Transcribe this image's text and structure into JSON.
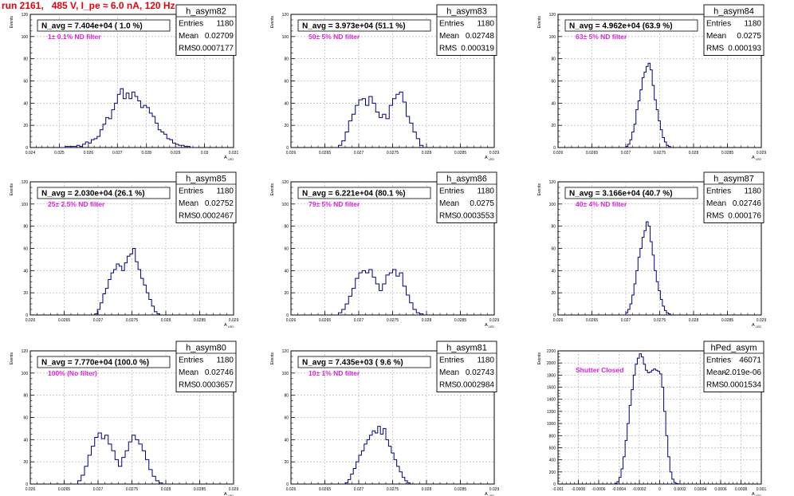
{
  "page": {
    "title": "run 2161,   485 V, I_pe ≈ 6.0 nA, 120 Hz",
    "colors": {
      "title": "#e8000a",
      "hist": "#000080",
      "annotation": "#e020e0",
      "grid": "#aaaaaa"
    }
  },
  "chart_data": [
    {
      "type": "histogram",
      "hist_name": "h_asym82",
      "n_avg": "N_avg = 7.404e+04 ( 1.0 %)",
      "annotation": "1± 0.1% ND filter",
      "stats": [
        {
          "label": "Entries",
          "value": "1180"
        },
        {
          "label": "Mean",
          "value": "0.02709"
        },
        {
          "label": "RMS",
          "value": "0.0007177"
        }
      ],
      "ylabel": "Events",
      "xlabel": "A",
      "xlabel_sub": "LED",
      "xlim": [
        0.024,
        0.031
      ],
      "ylim": [
        0,
        120
      ],
      "xticks": [
        0.024,
        0.025,
        0.026,
        0.027,
        0.028,
        0.029,
        0.03,
        0.031
      ],
      "xtick_labels": [
        "0.024",
        "0.025",
        "0.026",
        "0.027",
        "0.028",
        "0.029",
        "0.03",
        "0.031"
      ],
      "yticks": [
        0,
        20,
        40,
        60,
        80,
        100,
        120
      ],
      "ytick_labels": [
        "0",
        "20",
        "40",
        "60",
        "80",
        "100",
        "120"
      ],
      "bins": {
        "start": 0.025,
        "width": 0.0001,
        "counts": [
          0,
          0,
          1,
          1,
          1,
          1,
          2,
          1,
          3,
          5,
          4,
          7,
          8,
          10,
          16,
          21,
          27,
          26,
          34,
          40,
          48,
          53,
          44,
          49,
          44,
          50,
          46,
          42,
          36,
          38,
          36,
          31,
          28,
          22,
          16,
          14,
          12,
          8,
          7,
          4,
          3,
          2,
          2,
          1,
          1,
          0,
          0
        ]
      }
    },
    {
      "type": "histogram",
      "hist_name": "h_asym83",
      "n_avg": "N_avg = 3.973e+04 (51.1 %)",
      "annotation": "50± 5% ND filter",
      "stats": [
        {
          "label": "Entries",
          "value": "1180"
        },
        {
          "label": "Mean",
          "value": "0.02748"
        },
        {
          "label": "RMS",
          "value": "0.000319"
        }
      ],
      "ylabel": "Events",
      "xlabel": "A",
      "xlabel_sub": "LED",
      "xlim": [
        0.026,
        0.029
      ],
      "ylim": [
        0,
        120
      ],
      "xticks": [
        0.026,
        0.0265,
        0.027,
        0.0275,
        0.028,
        0.0285,
        0.029
      ],
      "xtick_labels": [
        "0.026",
        "0.0265",
        "0.027",
        "0.0275",
        "0.028",
        "0.0285",
        "0.029"
      ],
      "yticks": [
        0,
        20,
        40,
        60,
        80,
        100,
        120
      ],
      "ytick_labels": [
        "0",
        "20",
        "40",
        "60",
        "80",
        "100",
        "120"
      ],
      "bins": {
        "start": 0.0267,
        "width": 5e-05,
        "counts": [
          2,
          6,
          14,
          24,
          30,
          38,
          43,
          44,
          38,
          46,
          40,
          32,
          27,
          30,
          26,
          38,
          44,
          48,
          50,
          41,
          28,
          22,
          14,
          8,
          2
        ]
      }
    },
    {
      "type": "histogram",
      "hist_name": "h_asym84",
      "n_avg": "N_avg = 4.962e+04 (63.9 %)",
      "annotation": "63± 5% ND filter",
      "stats": [
        {
          "label": "Entries",
          "value": "1180"
        },
        {
          "label": "Mean",
          "value": "0.0275"
        },
        {
          "label": "RMS",
          "value": "0.000193"
        }
      ],
      "ylabel": "Events",
      "xlabel": "A",
      "xlabel_sub": "LED",
      "xlim": [
        0.026,
        0.029
      ],
      "ylim": [
        0,
        120
      ],
      "xticks": [
        0.026,
        0.0265,
        0.027,
        0.0275,
        0.028,
        0.0285,
        0.029
      ],
      "xtick_labels": [
        "0.026",
        "0.0265",
        "0.027",
        "0.0275",
        "0.028",
        "0.0285",
        "0.029"
      ],
      "yticks": [
        0,
        20,
        40,
        60,
        80,
        100,
        120
      ],
      "ytick_labels": [
        "0",
        "20",
        "40",
        "60",
        "80",
        "100",
        "120"
      ],
      "bins": {
        "start": 0.027,
        "width": 3e-05,
        "counts": [
          1,
          3,
          7,
          14,
          21,
          34,
          42,
          52,
          63,
          68,
          73,
          76,
          70,
          56,
          43,
          34,
          24,
          16,
          9,
          5,
          2,
          1
        ]
      }
    },
    {
      "type": "histogram",
      "hist_name": "h_asym85",
      "n_avg": "N_avg = 2.030e+04 (26.1 %)",
      "annotation": "25± 2.5% ND filter",
      "stats": [
        {
          "label": "Entries",
          "value": "1180"
        },
        {
          "label": "Mean",
          "value": "0.02752"
        },
        {
          "label": "RMS",
          "value": "0.0002467"
        }
      ],
      "ylabel": "Events",
      "xlabel": "A",
      "xlabel_sub": "LED",
      "xlim": [
        0.026,
        0.029
      ],
      "ylim": [
        0,
        120
      ],
      "xticks": [
        0.026,
        0.0265,
        0.027,
        0.0275,
        0.028,
        0.0285,
        0.029
      ],
      "xtick_labels": [
        "0.026",
        "0.0265",
        "0.027",
        "0.0275",
        "0.028",
        "0.0285",
        "0.029"
      ],
      "yticks": [
        0,
        20,
        40,
        60,
        80,
        100,
        120
      ],
      "ytick_labels": [
        "0",
        "20",
        "40",
        "60",
        "80",
        "100",
        "120"
      ],
      "bins": {
        "start": 0.02695,
        "width": 4e-05,
        "counts": [
          1,
          5,
          11,
          19,
          24,
          32,
          38,
          41,
          46,
          44,
          40,
          47,
          53,
          55,
          60,
          48,
          41,
          33,
          27,
          20,
          14,
          8,
          3,
          1
        ]
      }
    },
    {
      "type": "histogram",
      "hist_name": "h_asym86",
      "n_avg": "N_avg = 6.221e+04 (80.1 %)",
      "annotation": "79± 5% ND filter",
      "stats": [
        {
          "label": "Entries",
          "value": "1180"
        },
        {
          "label": "Mean",
          "value": "0.0275"
        },
        {
          "label": "RMS",
          "value": "0.0003553"
        }
      ],
      "ylabel": "Events",
      "xlabel": "A",
      "xlabel_sub": "LED",
      "xlim": [
        0.026,
        0.029
      ],
      "ylim": [
        0,
        120
      ],
      "xticks": [
        0.026,
        0.0265,
        0.027,
        0.0275,
        0.028,
        0.0285,
        0.029
      ],
      "xtick_labels": [
        "0.026",
        "0.0265",
        "0.027",
        "0.0275",
        "0.028",
        "0.0285",
        "0.029"
      ],
      "yticks": [
        0,
        20,
        40,
        60,
        80,
        100,
        120
      ],
      "ytick_labels": [
        "0",
        "20",
        "40",
        "60",
        "80",
        "100",
        "120"
      ],
      "bins": {
        "start": 0.0267,
        "width": 5e-05,
        "counts": [
          2,
          5,
          10,
          17,
          24,
          33,
          38,
          40,
          38,
          41,
          34,
          28,
          22,
          28,
          36,
          38,
          41,
          35,
          38,
          26,
          18,
          11,
          5,
          2,
          1
        ]
      }
    },
    {
      "type": "histogram",
      "hist_name": "h_asym87",
      "n_avg": "N_avg = 3.166e+04 (40.7 %)",
      "annotation": "40± 4% ND filter",
      "stats": [
        {
          "label": "Entries",
          "value": "1180"
        },
        {
          "label": "Mean",
          "value": "0.02746"
        },
        {
          "label": "RMS",
          "value": "0.000176"
        }
      ],
      "ylabel": "Events",
      "xlabel": "A",
      "xlabel_sub": "LED",
      "xlim": [
        0.026,
        0.029
      ],
      "ylim": [
        0,
        120
      ],
      "xticks": [
        0.026,
        0.0265,
        0.027,
        0.0275,
        0.028,
        0.0285,
        0.029
      ],
      "xtick_labels": [
        "0.026",
        "0.0265",
        "0.027",
        "0.0275",
        "0.028",
        "0.0285",
        "0.029"
      ],
      "yticks": [
        0,
        20,
        40,
        60,
        80,
        100,
        120
      ],
      "ytick_labels": [
        "0",
        "20",
        "40",
        "60",
        "80",
        "100",
        "120"
      ],
      "bins": {
        "start": 0.027,
        "width": 3e-05,
        "counts": [
          2,
          5,
          10,
          18,
          28,
          40,
          52,
          60,
          70,
          76,
          84,
          80,
          66,
          54,
          40,
          30,
          22,
          14,
          8,
          4,
          2,
          1
        ]
      }
    },
    {
      "type": "histogram",
      "hist_name": "h_asym80",
      "n_avg": "N_avg = 7.770e+04 (100.0 %)",
      "annotation": "100% (No filter)",
      "stats": [
        {
          "label": "Entries",
          "value": "1180"
        },
        {
          "label": "Mean",
          "value": "0.02746"
        },
        {
          "label": "RMS",
          "value": "0.0003657"
        }
      ],
      "ylabel": "Events",
      "xlabel": "A",
      "xlabel_sub": "LED",
      "xlim": [
        0.026,
        0.029
      ],
      "ylim": [
        0,
        120
      ],
      "xticks": [
        0.026,
        0.0265,
        0.027,
        0.0275,
        0.028,
        0.0285,
        0.029
      ],
      "xtick_labels": [
        "0.026",
        "0.0265",
        "0.027",
        "0.0275",
        "0.028",
        "0.0285",
        "0.029"
      ],
      "yticks": [
        0,
        20,
        40,
        60,
        80,
        100,
        120
      ],
      "ytick_labels": [
        "0",
        "20",
        "40",
        "60",
        "80",
        "100",
        "120"
      ],
      "bins": {
        "start": 0.0267,
        "width": 5e-05,
        "counts": [
          3,
          8,
          16,
          26,
          34,
          42,
          46,
          41,
          44,
          36,
          30,
          22,
          16,
          24,
          30,
          38,
          44,
          40,
          36,
          30,
          22,
          13,
          7,
          3,
          1
        ]
      }
    },
    {
      "type": "histogram",
      "hist_name": "h_asym81",
      "n_avg": "N_avg = 7.435e+03 ( 9.6 %)",
      "annotation": "10± 1% ND filter",
      "stats": [
        {
          "label": "Entries",
          "value": "1180"
        },
        {
          "label": "Mean",
          "value": "0.02743"
        },
        {
          "label": "RMS",
          "value": "0.0002984"
        }
      ],
      "ylabel": "Events",
      "xlabel": "A",
      "xlabel_sub": "LED",
      "xlim": [
        0.026,
        0.029
      ],
      "ylim": [
        0,
        120
      ],
      "xticks": [
        0.026,
        0.0265,
        0.027,
        0.0275,
        0.028,
        0.0285,
        0.029
      ],
      "xtick_labels": [
        "0.026",
        "0.0265",
        "0.027",
        "0.0275",
        "0.028",
        "0.0285",
        "0.029"
      ],
      "yticks": [
        0,
        20,
        40,
        60,
        80,
        100,
        120
      ],
      "ytick_labels": [
        "0",
        "20",
        "40",
        "60",
        "80",
        "100",
        "120"
      ],
      "bins": {
        "start": 0.0268,
        "width": 4e-05,
        "counts": [
          1,
          4,
          9,
          14,
          20,
          26,
          30,
          36,
          40,
          44,
          48,
          46,
          52,
          45,
          50,
          40,
          34,
          28,
          22,
          16,
          11,
          6,
          3,
          1
        ]
      }
    },
    {
      "type": "histogram",
      "hist_name": "hPed_asym",
      "n_avg": "",
      "annotation": "Shutter Closed",
      "stats": [
        {
          "label": "Entries",
          "value": "46071"
        },
        {
          "label": "Mean",
          "value": "-2.019e-06"
        },
        {
          "label": "RMS",
          "value": "0.0001534"
        }
      ],
      "ylabel": "Events",
      "xlabel": "A",
      "xlabel_sub": "LED",
      "xlim": [
        -0.001,
        0.001
      ],
      "ylim": [
        0,
        2200
      ],
      "xticks": [
        -0.001,
        -0.0008,
        -0.0006,
        -0.0004,
        -0.0002,
        0,
        0.0002,
        0.0004,
        0.0006,
        0.0008,
        0.001
      ],
      "xtick_labels": [
        "-0.001",
        "-0.0008",
        "-0.0006",
        "-0.0004",
        "-0.0002",
        "0",
        "0.0002",
        "0.0004",
        "0.0006",
        "0.0008",
        "0.001"
      ],
      "yticks": [
        0,
        200,
        400,
        600,
        800,
        1000,
        1200,
        1400,
        1600,
        1800,
        2000,
        2200
      ],
      "ytick_labels": [
        "0",
        "200",
        "400",
        "600",
        "800",
        "1000",
        "1200",
        "1400",
        "1600",
        "1800",
        "2000",
        "2200"
      ],
      "bins": {
        "start": -0.00044,
        "width": 2e-05,
        "counts": [
          10,
          40,
          110,
          250,
          450,
          720,
          1000,
          1300,
          1560,
          1800,
          1980,
          2080,
          2150,
          2100,
          1980,
          1880,
          1840,
          1850,
          1880,
          1900,
          1880,
          1860,
          1820,
          1600,
          1200,
          800,
          450,
          200,
          80,
          25,
          8,
          2
        ]
      }
    }
  ]
}
